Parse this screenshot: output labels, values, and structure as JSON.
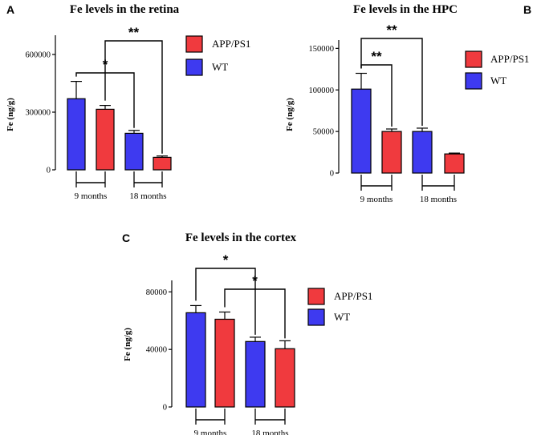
{
  "colors": {
    "app": "#f03a3e",
    "wt": "#3e3af0",
    "stroke": "#000000"
  },
  "legend": [
    {
      "name": "APP/PS1",
      "color": "#f03a3e"
    },
    {
      "name": "WT",
      "color": "#3e3af0"
    }
  ],
  "chart_data": [
    {
      "panel": "A",
      "type": "bar",
      "title": "Fe levels in the retina",
      "ylabel": "Fe (ng/g)",
      "ylim": [
        0,
        700000
      ],
      "yticks": [
        0,
        300000,
        600000
      ],
      "ytick_labels": [
        "0",
        "300000",
        "600000"
      ],
      "groups": [
        "9 months",
        "18 months"
      ],
      "series": [
        {
          "name": "WT",
          "values": [
            370000,
            190000
          ],
          "errors": [
            90000,
            15000
          ]
        },
        {
          "name": "APP/PS1",
          "values": [
            315000,
            65000
          ],
          "errors": [
            20000,
            7000
          ]
        }
      ],
      "significance": [
        {
          "label": "*",
          "from": "WT 9 months",
          "to": "WT 18 months"
        },
        {
          "label": "**",
          "from": "APP/PS1 9 months",
          "to": "APP/PS1 18 months"
        }
      ]
    },
    {
      "panel": "B",
      "type": "bar",
      "title": "Fe levels in the HPC",
      "ylabel": "Fe (ng/g)",
      "ylim": [
        0,
        160000
      ],
      "yticks": [
        0,
        50000,
        100000,
        150000
      ],
      "ytick_labels": [
        "0",
        "50000",
        "100000",
        "150000"
      ],
      "groups": [
        "9 months",
        "18 months"
      ],
      "series": [
        {
          "name": "WT",
          "values": [
            101000,
            50000
          ],
          "errors": [
            19000,
            4000
          ]
        },
        {
          "name": "APP/PS1",
          "values": [
            50000,
            23000
          ],
          "errors": [
            3000,
            1000
          ]
        }
      ],
      "significance": [
        {
          "label": "**",
          "from": "WT 9 months",
          "to": "APP/PS1 9 months"
        },
        {
          "label": "**",
          "from": "WT 9 months",
          "to": "WT 18 months"
        }
      ]
    },
    {
      "panel": "C",
      "type": "bar",
      "title": "Fe levels in the cortex",
      "ylabel": "Fe (ng/g)",
      "ylim": [
        0,
        88000
      ],
      "yticks": [
        0,
        40000,
        80000
      ],
      "ytick_labels": [
        "0",
        "40000",
        "80000"
      ],
      "groups": [
        "9 months",
        "18 months"
      ],
      "series": [
        {
          "name": "WT",
          "values": [
            65500,
            45500
          ],
          "errors": [
            5000,
            3000
          ]
        },
        {
          "name": "APP/PS1",
          "values": [
            61000,
            40500
          ],
          "errors": [
            5000,
            5500
          ]
        }
      ],
      "significance": [
        {
          "label": "*",
          "from": "WT 9 months",
          "to": "WT 18 months"
        },
        {
          "label": "*",
          "from": "APP/PS1 9 months",
          "to": "APP/PS1 18 months"
        }
      ]
    }
  ]
}
